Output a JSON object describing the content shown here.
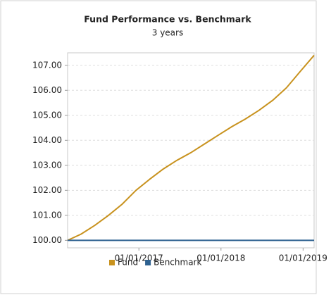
{
  "chart_data": {
    "type": "line",
    "title": "Fund Performance vs. Benchmark",
    "subtitle": "3 years",
    "x": [
      "2016-02-19",
      "2016-04-19",
      "2016-06-19",
      "2016-08-19",
      "2016-10-19",
      "2016-12-19",
      "2017-02-19",
      "2017-04-19",
      "2017-06-19",
      "2017-08-19",
      "2017-10-19",
      "2017-12-19",
      "2018-02-19",
      "2018-04-19",
      "2018-06-19",
      "2018-08-19",
      "2018-10-19",
      "2018-12-19",
      "2019-02-19"
    ],
    "series": [
      {
        "name": "Fund",
        "color": "#c8921e",
        "values": [
          100.0,
          100.25,
          100.6,
          101.0,
          101.45,
          102.0,
          102.45,
          102.85,
          103.2,
          103.5,
          103.85,
          104.2,
          104.55,
          104.85,
          105.2,
          105.6,
          106.1,
          106.75,
          107.4
        ]
      },
      {
        "name": "Benchmark",
        "color": "#2e6190",
        "values": [
          100.0,
          100.0,
          100.0,
          100.0,
          100.0,
          100.0,
          100.0,
          100.0,
          100.0,
          100.0,
          100.0,
          100.0,
          100.0,
          100.0,
          100.0,
          100.0,
          100.0,
          100.0,
          100.0
        ]
      }
    ],
    "xlim": [
      "2016-02-19",
      "2019-02-19"
    ],
    "xticks": [
      {
        "value": "2017-01-01",
        "label": "01/01/2017"
      },
      {
        "value": "2018-01-01",
        "label": "01/01/2018"
      },
      {
        "value": "2019-01-01",
        "label": "01/01/2019"
      }
    ],
    "ylim": [
      99.7,
      107.5
    ],
    "yticks": [
      {
        "value": 100,
        "label": "100.00"
      },
      {
        "value": 101,
        "label": "101.00"
      },
      {
        "value": 102,
        "label": "102.00"
      },
      {
        "value": 103,
        "label": "103.00"
      },
      {
        "value": 104,
        "label": "104.00"
      },
      {
        "value": 105,
        "label": "105.00"
      },
      {
        "value": 106,
        "label": "106.00"
      },
      {
        "value": 107,
        "label": "107.00"
      }
    ],
    "grid": true,
    "legend": "bottom"
  }
}
